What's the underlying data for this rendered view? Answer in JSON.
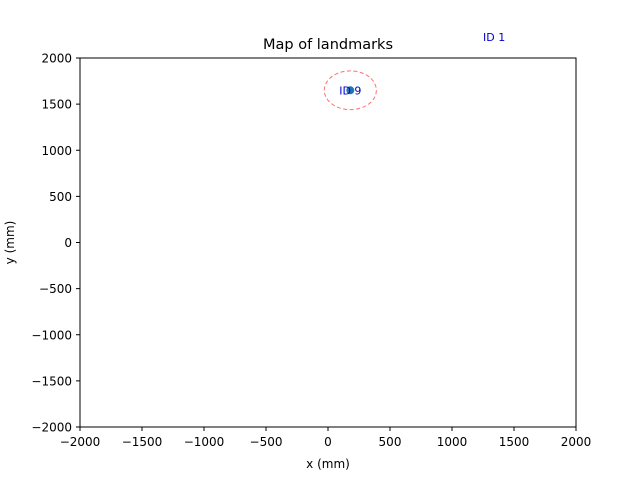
{
  "chart_data": {
    "type": "scatter",
    "title": "Map of landmarks",
    "xlabel": "x (mm)",
    "ylabel": "y (mm)",
    "xlim": [
      -2000,
      2000
    ],
    "ylim": [
      -2000,
      2000
    ],
    "xticks": [
      -2000,
      -1500,
      -1000,
      -500,
      0,
      500,
      1000,
      1500,
      2000
    ],
    "yticks": [
      -2000,
      -1500,
      -1000,
      -500,
      0,
      500,
      1000,
      1500,
      2000
    ],
    "xtick_labels": [
      "−2000",
      "−1500",
      "−1000",
      "−500",
      "0",
      "500",
      "1000",
      "1500",
      "2000"
    ],
    "ytick_labels": [
      "−2000",
      "−1500",
      "−1000",
      "−500",
      "0",
      "500",
      "1000",
      "1500",
      "2000"
    ],
    "grid": false,
    "landmarks": [
      {
        "label": "ID 9",
        "x": 180,
        "y": 1650,
        "radius": 210,
        "show_marker": true
      },
      {
        "label": "ID 1",
        "x": 1340,
        "y": 2230,
        "radius": 0,
        "show_marker": false
      }
    ],
    "colors": {
      "marker": "#1f77b4",
      "label": "#0000cc",
      "uncertainty": "#ff6f6f",
      "axis": "#000000"
    }
  }
}
